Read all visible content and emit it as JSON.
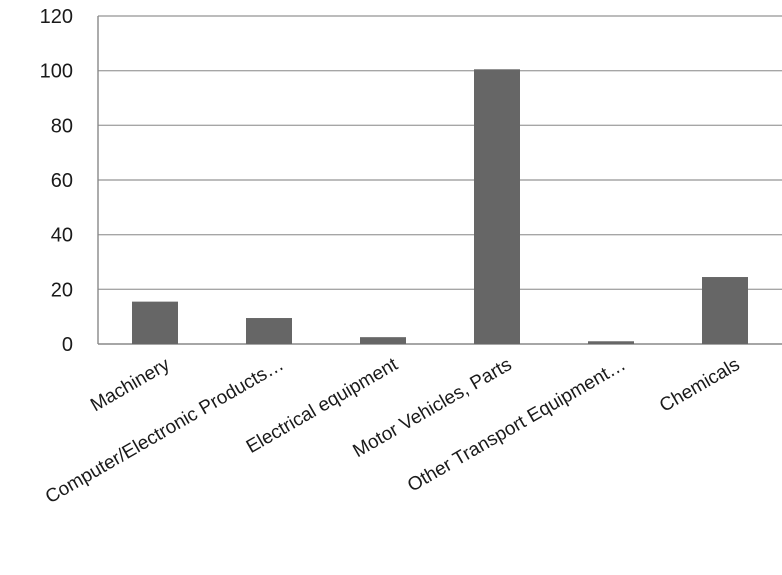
{
  "chart_data": {
    "type": "bar",
    "title": "",
    "xlabel": "",
    "ylabel": "",
    "categories": [
      "Machinery",
      "Computer/Electronic Products…",
      "Electrical equipment",
      "Motor Vehicles, Parts",
      "Other Transport Equipment…",
      "Chemicals"
    ],
    "values": [
      15.5,
      9.5,
      2.5,
      100.5,
      1.0,
      24.5
    ],
    "ylim": [
      0,
      120
    ],
    "yticks": [
      0,
      20,
      40,
      60,
      80,
      100,
      120
    ],
    "grid": true,
    "legend": "none",
    "bar_color": "#666666",
    "grid_color": "#a6a6a6",
    "axis_color": "#888888"
  }
}
